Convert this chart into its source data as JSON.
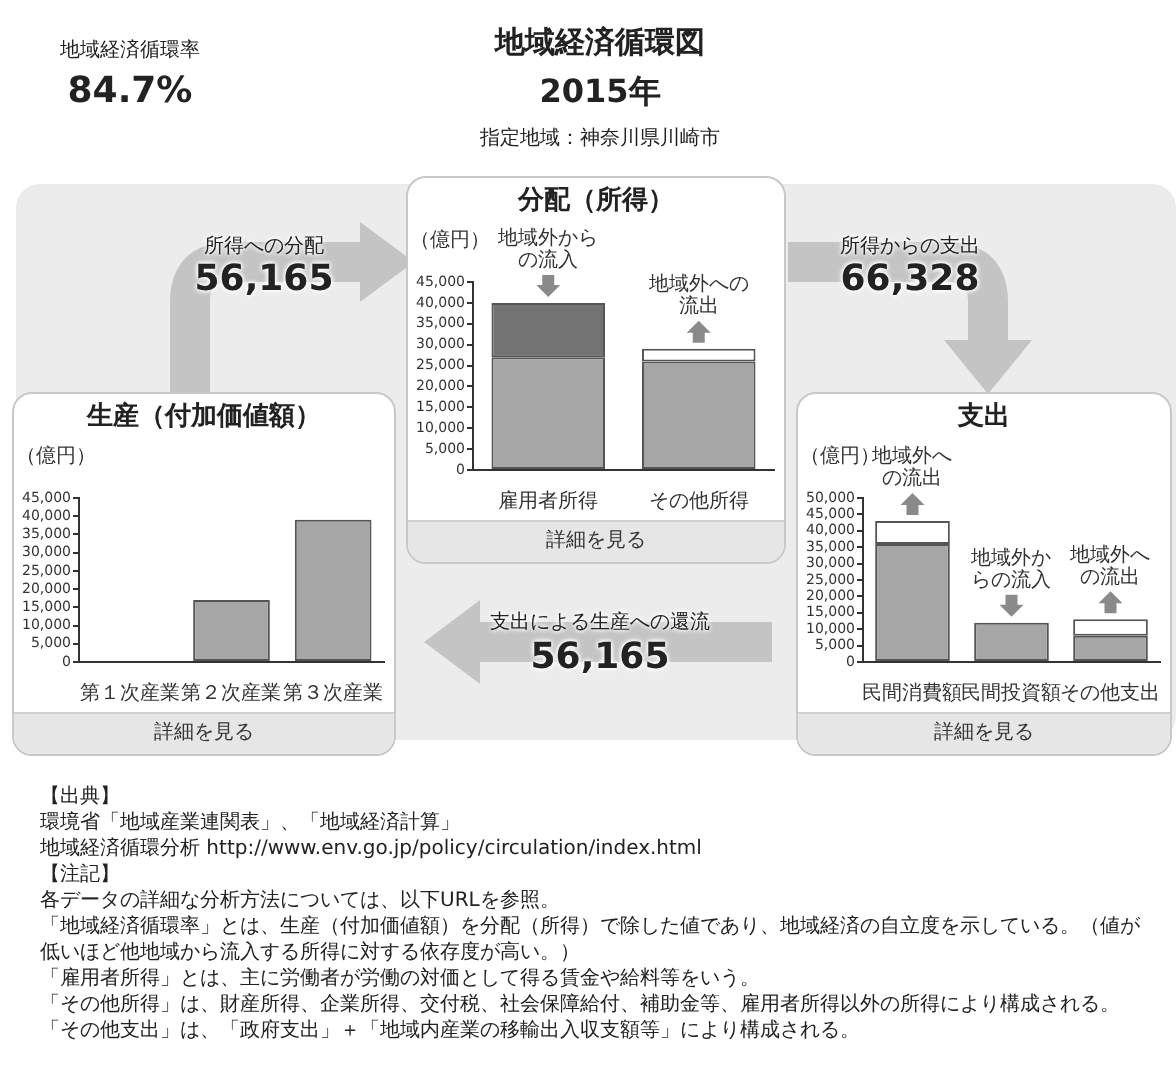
{
  "chart_data": [
    {
      "type": "other",
      "title": "地域経済循環図",
      "subtitle": "2015年",
      "annotations": [
        "地域経済循環率",
        "84.7%",
        "指定地域：神奈川県川崎市",
        "所得への分配",
        "56,165",
        "所得からの支出",
        "66,328",
        "支出による生産への還流",
        "56,165"
      ]
    },
    {
      "type": "bar",
      "title": "生産（付加価値額）",
      "ylabel": "（億円）",
      "categories": [
        "第１次産業",
        "第２次産業",
        "第３次産業"
      ],
      "series": [
        {
          "color": "#a6a6a6",
          "values": [
            0,
            17000,
            39000
          ]
        }
      ],
      "ylim": [
        0,
        45000
      ],
      "yticks": [
        {
          "value": 0,
          "label": "0"
        },
        {
          "value": 5000,
          "label": "5,000"
        },
        {
          "value": 10000,
          "label": "10,000"
        },
        {
          "value": 15000,
          "label": "15,000"
        },
        {
          "value": 20000,
          "label": "20,000"
        },
        {
          "value": 25000,
          "label": "25,000"
        },
        {
          "value": 30000,
          "label": "30,000"
        },
        {
          "value": 35000,
          "label": "35,000"
        },
        {
          "value": 40000,
          "label": "40,000"
        },
        {
          "value": 45000,
          "label": "45,000"
        }
      ],
      "annotations": [
        "詳細を見る"
      ]
    },
    {
      "type": "bar",
      "title": "分配（所得）",
      "ylabel": "（億円）",
      "categories": [
        "雇用者所得",
        "その他所得"
      ],
      "stacked": true,
      "series": [
        {
          "color": "#a6a6a6",
          "values": [
            27000,
            26000
          ]
        },
        {
          "color": "#737373",
          "values": [
            13000,
            null
          ]
        },
        {
          "color": "#ffffff",
          "values": [
            null,
            3000
          ]
        }
      ],
      "ylim": [
        0,
        45000
      ],
      "yticks": [
        {
          "value": 0,
          "label": "0"
        },
        {
          "value": 5000,
          "label": "5,000"
        },
        {
          "value": 10000,
          "label": "10,000"
        },
        {
          "value": 15000,
          "label": "15,000"
        },
        {
          "value": 20000,
          "label": "20,000"
        },
        {
          "value": 25000,
          "label": "25,000"
        },
        {
          "value": 30000,
          "label": "30,000"
        },
        {
          "value": 35000,
          "label": "35,000"
        },
        {
          "value": 40000,
          "label": "40,000"
        },
        {
          "value": 45000,
          "label": "45,000"
        }
      ],
      "annotations": [
        {
          "text": "地域外からの流入",
          "x": "雇用者所得",
          "y": 40000
        },
        {
          "text": "地域外への流出",
          "x": "その他所得",
          "y": 29000
        },
        "詳細を見る"
      ]
    },
    {
      "type": "bar",
      "title": "支出",
      "ylabel": "（億円）",
      "categories": [
        "民間消費額",
        "民間投資額",
        "その他支出"
      ],
      "stacked": true,
      "series": [
        {
          "color": "#a6a6a6",
          "values": [
            36000,
            12000,
            8000
          ]
        },
        {
          "color": "#ffffff",
          "values": [
            7000,
            null,
            5000
          ]
        }
      ],
      "ylim": [
        0,
        50000
      ],
      "yticks": [
        {
          "value": 0,
          "label": "0"
        },
        {
          "value": 5000,
          "label": "5,000"
        },
        {
          "value": 10000,
          "label": "10,000"
        },
        {
          "value": 15000,
          "label": "15,000"
        },
        {
          "value": 20000,
          "label": "20,000"
        },
        {
          "value": 25000,
          "label": "25,000"
        },
        {
          "value": 30000,
          "label": "30,000"
        },
        {
          "value": 35000,
          "label": "35,000"
        },
        {
          "value": 40000,
          "label": "40,000"
        },
        {
          "value": 45000,
          "label": "45,000"
        },
        {
          "value": 50000,
          "label": "50,000"
        }
      ],
      "annotations": [
        {
          "text": "地域外への流出",
          "x": "民間消費額",
          "y": 43000
        },
        {
          "text": "地域外からの流入",
          "x": "民間投資額",
          "y": 12000
        },
        {
          "text": "地域外への流出",
          "x": "その他支出",
          "y": 13000
        },
        "詳細を見る"
      ]
    },
    {
      "type": "other",
      "annotations": [
        "【出典】",
        "環境省「地域産業連関表」、「地域経済計算」",
        "地域経済循環分析 http://www.env.go.jp/policy/circulation/index.html",
        "【注記】",
        "各データの詳細な分析方法については、以下URLを参照。",
        "「地域経済循環率」とは、生産（付加価値額）を分配（所得）で除した値であり、地域経済の自立度を示している。（値が低いほど他地域から流入する所得に対する依存度が高い。）",
        "「雇用者所得」とは、主に労働者が労働の対価として得る賃金や給料等をいう。",
        "「その他所得」は、財産所得、企業所得、交付税、社会保障給付、補助金等、雇用者所得以外の所得により構成される。",
        "「その他支出」は、「政府支出」＋「地域内産業の移輸出入収支額等」により構成される。"
      ]
    }
  ]
}
